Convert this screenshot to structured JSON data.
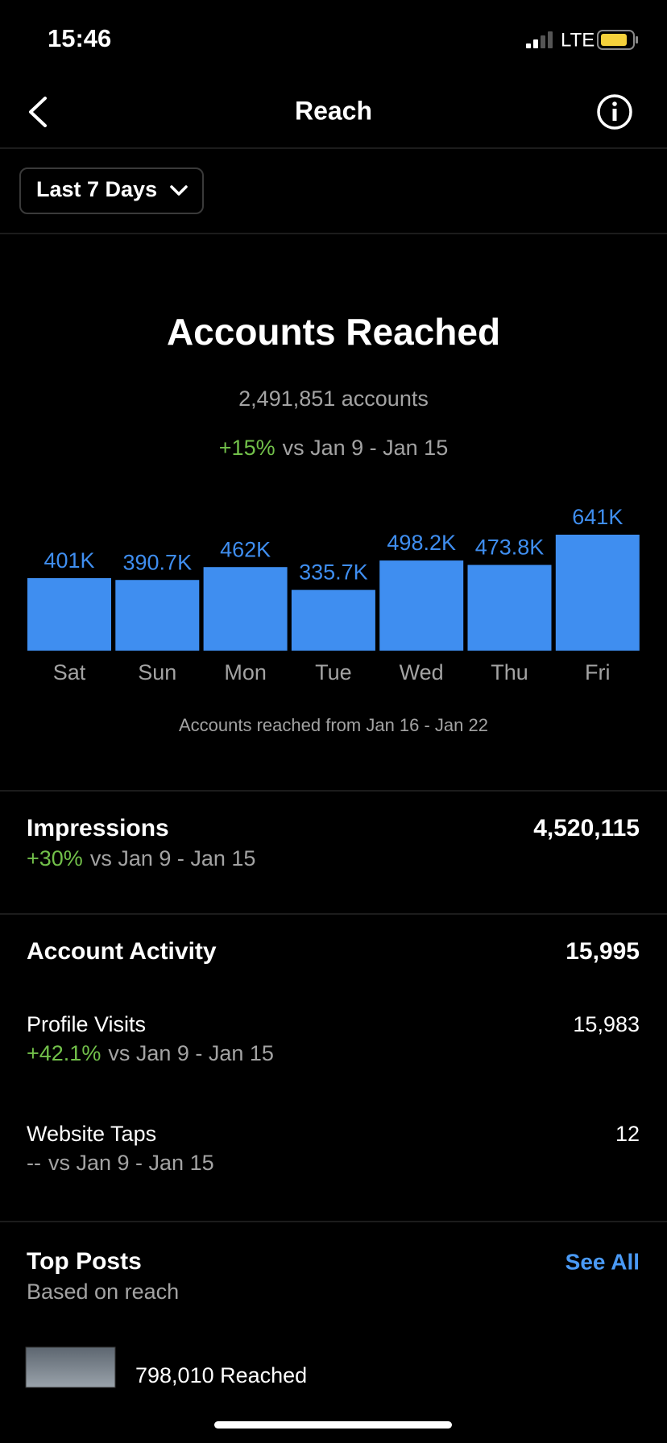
{
  "status_bar": {
    "time": "15:46",
    "network": "LTE"
  },
  "header": {
    "title": "Reach"
  },
  "filter": {
    "label": "Last 7 Days"
  },
  "chart_data": {
    "type": "bar",
    "title": "Accounts Reached",
    "subtitle": "2,491,851 accounts",
    "change": "+15%",
    "comparison": "vs Jan 9 - Jan 15",
    "caption": "Accounts reached from Jan 16 - Jan 22",
    "categories": [
      "Sat",
      "Sun",
      "Mon",
      "Tue",
      "Wed",
      "Thu",
      "Fri"
    ],
    "values": [
      401000,
      390700,
      462000,
      335700,
      498200,
      473800,
      641000
    ],
    "value_labels": [
      "401K",
      "390.7K",
      "462K",
      "335.7K",
      "498.2K",
      "473.8K",
      "641K"
    ],
    "color": "#3f8ef0"
  },
  "impressions": {
    "label": "Impressions",
    "value": "4,520,115",
    "change": "+30%",
    "comparison": "vs Jan 9 - Jan 15"
  },
  "account_activity": {
    "label": "Account Activity",
    "value": "15,995",
    "rows": [
      {
        "label": "Profile Visits",
        "value": "15,983",
        "change": "+42.1%",
        "comparison": "vs Jan 9 - Jan 15"
      },
      {
        "label": "Website Taps",
        "value": "12",
        "change": "--",
        "comparison": "vs Jan 9 - Jan 15"
      }
    ]
  },
  "top_posts": {
    "title": "Top Posts",
    "subtitle": "Based on reach",
    "action": "See All",
    "posts": [
      {
        "reach": "798,010 Reached"
      }
    ]
  }
}
